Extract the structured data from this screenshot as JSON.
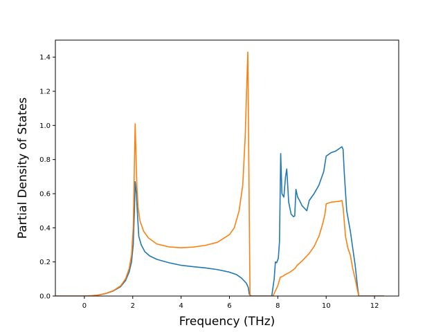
{
  "chart_data": {
    "type": "line",
    "title": "",
    "xlabel": "Frequency (THz)",
    "ylabel": "Partial Density of States",
    "xlim": [
      -1.2,
      13.0
    ],
    "ylim": [
      0.0,
      1.5
    ],
    "xticks": [
      0,
      2,
      4,
      6,
      8,
      10,
      12
    ],
    "xtick_labels": [
      "0",
      "2",
      "4",
      "6",
      "8",
      "10",
      "12"
    ],
    "yticks": [
      0.0,
      0.2,
      0.4,
      0.6,
      0.8,
      1.0,
      1.2,
      1.4
    ],
    "ytick_labels": [
      "0.0",
      "0.2",
      "0.4",
      "0.6",
      "0.8",
      "1.0",
      "1.2",
      "1.4"
    ],
    "grid": false,
    "legend": "none",
    "series": [
      {
        "color": "#1f77b4",
        "points": [
          [
            -1.2,
            0.0
          ],
          [
            0.0,
            0.0
          ],
          [
            0.3,
            0.002
          ],
          [
            0.6,
            0.006
          ],
          [
            0.9,
            0.015
          ],
          [
            1.2,
            0.03
          ],
          [
            1.5,
            0.055
          ],
          [
            1.7,
            0.09
          ],
          [
            1.85,
            0.14
          ],
          [
            1.95,
            0.2
          ],
          [
            2.02,
            0.3
          ],
          [
            2.07,
            0.5
          ],
          [
            2.1,
            0.67
          ],
          [
            2.15,
            0.6
          ],
          [
            2.2,
            0.47
          ],
          [
            2.25,
            0.35
          ],
          [
            2.35,
            0.3
          ],
          [
            2.5,
            0.26
          ],
          [
            2.7,
            0.235
          ],
          [
            3.0,
            0.215
          ],
          [
            3.5,
            0.195
          ],
          [
            4.0,
            0.18
          ],
          [
            4.5,
            0.172
          ],
          [
            5.0,
            0.165
          ],
          [
            5.5,
            0.155
          ],
          [
            6.0,
            0.14
          ],
          [
            6.3,
            0.125
          ],
          [
            6.5,
            0.105
          ],
          [
            6.7,
            0.075
          ],
          [
            6.78,
            0.05
          ],
          [
            6.82,
            0.01
          ],
          [
            6.9,
            0.0
          ],
          [
            7.75,
            0.0
          ],
          [
            7.85,
            0.1
          ],
          [
            7.9,
            0.2
          ],
          [
            7.95,
            0.195
          ],
          [
            8.02,
            0.22
          ],
          [
            8.07,
            0.32
          ],
          [
            8.12,
            0.835
          ],
          [
            8.17,
            0.6
          ],
          [
            8.25,
            0.58
          ],
          [
            8.32,
            0.7
          ],
          [
            8.37,
            0.745
          ],
          [
            8.45,
            0.55
          ],
          [
            8.55,
            0.48
          ],
          [
            8.65,
            0.465
          ],
          [
            8.7,
            0.47
          ],
          [
            8.75,
            0.625
          ],
          [
            8.82,
            0.58
          ],
          [
            8.9,
            0.56
          ],
          [
            9.0,
            0.53
          ],
          [
            9.2,
            0.5
          ],
          [
            9.3,
            0.56
          ],
          [
            9.5,
            0.6
          ],
          [
            9.7,
            0.65
          ],
          [
            9.9,
            0.73
          ],
          [
            10.0,
            0.82
          ],
          [
            10.2,
            0.84
          ],
          [
            10.4,
            0.85
          ],
          [
            10.6,
            0.87
          ],
          [
            10.65,
            0.875
          ],
          [
            10.7,
            0.86
          ],
          [
            10.75,
            0.72
          ],
          [
            10.85,
            0.5
          ],
          [
            11.0,
            0.38
          ],
          [
            11.1,
            0.28
          ],
          [
            11.2,
            0.18
          ],
          [
            11.3,
            0.05
          ],
          [
            11.35,
            0.0
          ],
          [
            12.4,
            0.0
          ]
        ]
      },
      {
        "color": "#ff7f0e",
        "points": [
          [
            -1.2,
            0.0
          ],
          [
            0.0,
            0.0
          ],
          [
            0.3,
            0.002
          ],
          [
            0.6,
            0.007
          ],
          [
            0.9,
            0.016
          ],
          [
            1.2,
            0.032
          ],
          [
            1.5,
            0.06
          ],
          [
            1.7,
            0.1
          ],
          [
            1.85,
            0.16
          ],
          [
            1.95,
            0.24
          ],
          [
            2.02,
            0.4
          ],
          [
            2.06,
            0.7
          ],
          [
            2.1,
            1.01
          ],
          [
            2.13,
            0.85
          ],
          [
            2.17,
            0.65
          ],
          [
            2.22,
            0.52
          ],
          [
            2.3,
            0.44
          ],
          [
            2.45,
            0.38
          ],
          [
            2.65,
            0.34
          ],
          [
            3.0,
            0.305
          ],
          [
            3.5,
            0.288
          ],
          [
            4.0,
            0.283
          ],
          [
            4.5,
            0.287
          ],
          [
            5.0,
            0.297
          ],
          [
            5.5,
            0.315
          ],
          [
            6.0,
            0.36
          ],
          [
            6.2,
            0.4
          ],
          [
            6.4,
            0.5
          ],
          [
            6.55,
            0.65
          ],
          [
            6.65,
            0.93
          ],
          [
            6.72,
            1.25
          ],
          [
            6.76,
            1.43
          ],
          [
            6.8,
            0.8
          ],
          [
            6.85,
            0.0
          ],
          [
            7.8,
            0.0
          ],
          [
            7.9,
            0.03
          ],
          [
            8.0,
            0.06
          ],
          [
            8.1,
            0.11
          ],
          [
            8.2,
            0.115
          ],
          [
            8.3,
            0.125
          ],
          [
            8.5,
            0.14
          ],
          [
            8.7,
            0.16
          ],
          [
            8.8,
            0.18
          ],
          [
            9.0,
            0.205
          ],
          [
            9.3,
            0.25
          ],
          [
            9.5,
            0.29
          ],
          [
            9.7,
            0.35
          ],
          [
            9.85,
            0.42
          ],
          [
            9.95,
            0.48
          ],
          [
            10.0,
            0.54
          ],
          [
            10.2,
            0.55
          ],
          [
            10.4,
            0.553
          ],
          [
            10.55,
            0.555
          ],
          [
            10.65,
            0.56
          ],
          [
            10.7,
            0.52
          ],
          [
            10.8,
            0.35
          ],
          [
            10.9,
            0.28
          ],
          [
            11.0,
            0.24
          ],
          [
            11.1,
            0.16
          ],
          [
            11.2,
            0.1
          ],
          [
            11.3,
            0.03
          ],
          [
            11.35,
            0.0
          ],
          [
            12.4,
            0.0
          ]
        ]
      }
    ]
  }
}
